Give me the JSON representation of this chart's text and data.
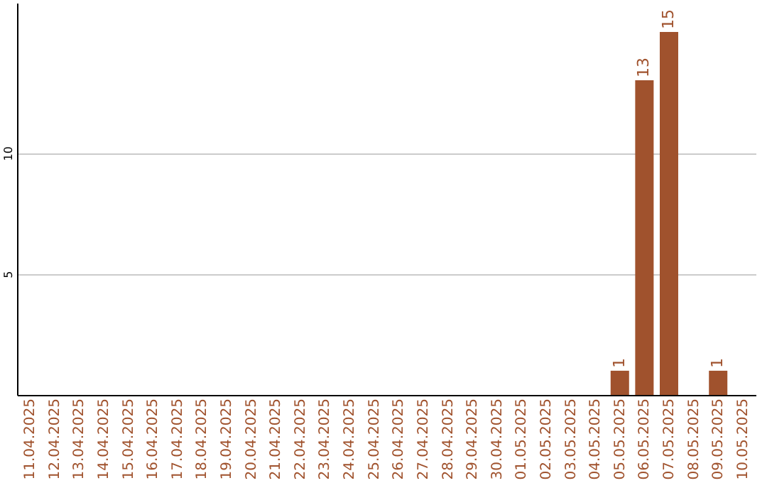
{
  "chart_data": {
    "type": "bar",
    "categories": [
      "11.04.2025",
      "12.04.2025",
      "13.04.2025",
      "14.04.2025",
      "15.04.2025",
      "16.04.2025",
      "17.04.2025",
      "18.04.2025",
      "19.04.2025",
      "20.04.2025",
      "21.04.2025",
      "22.04.2025",
      "23.04.2025",
      "24.04.2025",
      "25.04.2025",
      "26.04.2025",
      "27.04.2025",
      "28.04.2025",
      "29.04.2025",
      "30.04.2025",
      "01.05.2025",
      "02.05.2025",
      "03.05.2025",
      "04.05.2025",
      "05.05.2025",
      "06.05.2025",
      "07.05.2025",
      "08.05.2025",
      "09.05.2025",
      "10.05.2025"
    ],
    "values": [
      0,
      0,
      0,
      0,
      0,
      0,
      0,
      0,
      0,
      0,
      0,
      0,
      0,
      0,
      0,
      0,
      0,
      0,
      0,
      0,
      0,
      0,
      0,
      0,
      1,
      13,
      15,
      0,
      1,
      0
    ],
    "value_labels": [
      null,
      null,
      null,
      null,
      null,
      null,
      null,
      null,
      null,
      null,
      null,
      null,
      null,
      null,
      null,
      null,
      null,
      null,
      null,
      null,
      null,
      null,
      null,
      null,
      "1",
      "13",
      "15",
      null,
      "1",
      null
    ],
    "color": "#a0522d",
    "ylim": [
      0,
      16.2
    ],
    "yticks": [
      5,
      10
    ],
    "grid": "y"
  }
}
